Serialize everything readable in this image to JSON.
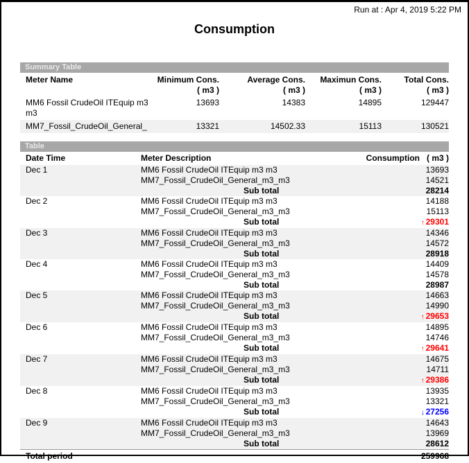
{
  "page": {
    "run_at": "Run at : Apr 4, 2019 5:22 PM",
    "title": "Consumption"
  },
  "icons": {
    "up_arrow": "↑",
    "down_arrow": "↓"
  },
  "colors": {
    "section_bar_bg": "#a7a7a7",
    "section_bar_text": "#e9e9e9",
    "row_shade": "#f1f1f1",
    "subtotal_up": "#ff0000",
    "subtotal_down": "#0000ff",
    "text": "#000000"
  },
  "summary_table": {
    "section_title": "Summary Table",
    "columns": {
      "meter": "Meter Name",
      "min": "Minimum Cons.",
      "avg": "Average Cons.",
      "max": "Maximun Cons.",
      "total": "Total Cons."
    },
    "unit_label": "( m3 )",
    "rows": [
      {
        "meter": "MM6 Fossil CrudeOil ITEquip m3 m3",
        "min": "13693",
        "avg": "14383",
        "max": "14895",
        "total": "129447"
      },
      {
        "meter": "MM7_Fossil_CrudeOil_General_",
        "min": "13321",
        "avg": "14502.33",
        "max": "15113",
        "total": "130521"
      }
    ]
  },
  "detail_table": {
    "section_title": "Table",
    "columns": {
      "date": "Date Time",
      "meter": "Meter Description",
      "consumption": "Consumption",
      "unit": "( m3 )"
    },
    "sub_total_label": "Sub total",
    "groups": [
      {
        "date": "Dec 1",
        "entries": [
          {
            "meter": "MM6 Fossil CrudeOil ITEquip m3 m3",
            "value": "13693"
          },
          {
            "meter": "MM7_Fossil_CrudeOil_General_m3_m3",
            "value": "14521"
          }
        ],
        "sub_total": "28214",
        "trend": "none"
      },
      {
        "date": "Dec 2",
        "entries": [
          {
            "meter": "MM6 Fossil CrudeOil ITEquip m3 m3",
            "value": "14188"
          },
          {
            "meter": "MM7_Fossil_CrudeOil_General_m3_m3",
            "value": "15113"
          }
        ],
        "sub_total": "29301",
        "trend": "up"
      },
      {
        "date": "Dec 3",
        "entries": [
          {
            "meter": "MM6 Fossil CrudeOil ITEquip m3 m3",
            "value": "14346"
          },
          {
            "meter": "MM7_Fossil_CrudeOil_General_m3_m3",
            "value": "14572"
          }
        ],
        "sub_total": "28918",
        "trend": "none"
      },
      {
        "date": "Dec 4",
        "entries": [
          {
            "meter": "MM6 Fossil CrudeOil ITEquip m3 m3",
            "value": "14409"
          },
          {
            "meter": "MM7_Fossil_CrudeOil_General_m3_m3",
            "value": "14578"
          }
        ],
        "sub_total": "28987",
        "trend": "none"
      },
      {
        "date": "Dec 5",
        "entries": [
          {
            "meter": "MM6 Fossil CrudeOil ITEquip m3 m3",
            "value": "14663"
          },
          {
            "meter": "MM7_Fossil_CrudeOil_General_m3_m3",
            "value": "14990"
          }
        ],
        "sub_total": "29653",
        "trend": "up"
      },
      {
        "date": "Dec 6",
        "entries": [
          {
            "meter": "MM6 Fossil CrudeOil ITEquip m3 m3",
            "value": "14895"
          },
          {
            "meter": "MM7_Fossil_CrudeOil_General_m3_m3",
            "value": "14746"
          }
        ],
        "sub_total": "29641",
        "trend": "up"
      },
      {
        "date": "Dec 7",
        "entries": [
          {
            "meter": "MM6 Fossil CrudeOil ITEquip m3 m3",
            "value": "14675"
          },
          {
            "meter": "MM7_Fossil_CrudeOil_General_m3_m3",
            "value": "14711"
          }
        ],
        "sub_total": "29386",
        "trend": "up"
      },
      {
        "date": "Dec 8",
        "entries": [
          {
            "meter": "MM6 Fossil CrudeOil ITEquip m3 m3",
            "value": "13935"
          },
          {
            "meter": "MM7_Fossil_CrudeOil_General_m3_m3",
            "value": "13321"
          }
        ],
        "sub_total": "27256",
        "trend": "down"
      },
      {
        "date": "Dec 9",
        "entries": [
          {
            "meter": "MM6 Fossil CrudeOil ITEquip m3 m3",
            "value": "14643"
          },
          {
            "meter": "MM7_Fossil_CrudeOil_General_m3_m3",
            "value": "13969"
          }
        ],
        "sub_total": "28612",
        "trend": "none"
      }
    ],
    "total_label": "Total period",
    "total_value": "259968"
  }
}
